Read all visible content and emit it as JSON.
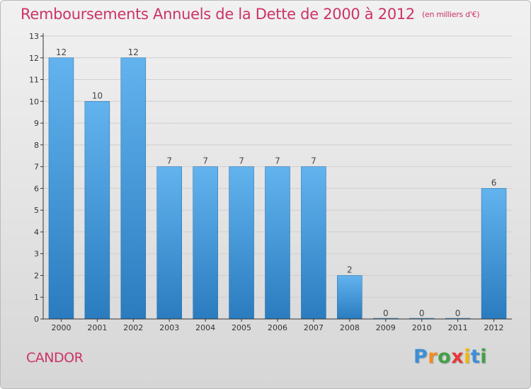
{
  "title": "Remboursements Annuels de la Dette de 2000 à 2012",
  "unit_label": "(en milliers d'€)",
  "commune": "CANDOR",
  "logo": {
    "letters": [
      "P",
      "r",
      "o",
      "x",
      "i",
      "t",
      "i"
    ],
    "colors": [
      "#3a8fd6",
      "#f28c1e",
      "#43a047",
      "#e53935",
      "#f2b705",
      "#3a8fd6",
      "#43a047"
    ]
  },
  "colors": {
    "accent": "#cc3366",
    "bar_top": "#62b3ee",
    "bar_bottom": "#2a7cbf",
    "axis": "#333333",
    "grid": "#cfcfcf"
  },
  "chart_data": {
    "type": "bar",
    "title": "Remboursements Annuels de la Dette de 2000 à 2012",
    "categories": [
      "2000",
      "2001",
      "2002",
      "2003",
      "2004",
      "2005",
      "2006",
      "2007",
      "2008",
      "2009",
      "2010",
      "2011",
      "2012"
    ],
    "values": [
      12,
      10,
      12,
      7,
      7,
      7,
      7,
      7,
      2,
      0,
      0,
      0,
      6
    ],
    "data_labels": [
      "12",
      "10",
      "12",
      "7",
      "7",
      "7",
      "7",
      "7",
      "2",
      "0",
      "0",
      "0",
      "6"
    ],
    "y_ticks": [
      "0",
      "1",
      "2",
      "3",
      "4",
      "5",
      "6",
      "7",
      "8",
      "9",
      "10",
      "11",
      "12",
      "13"
    ],
    "ylim": [
      0,
      13
    ],
    "xlabel": "",
    "ylabel": "",
    "grid": true
  }
}
